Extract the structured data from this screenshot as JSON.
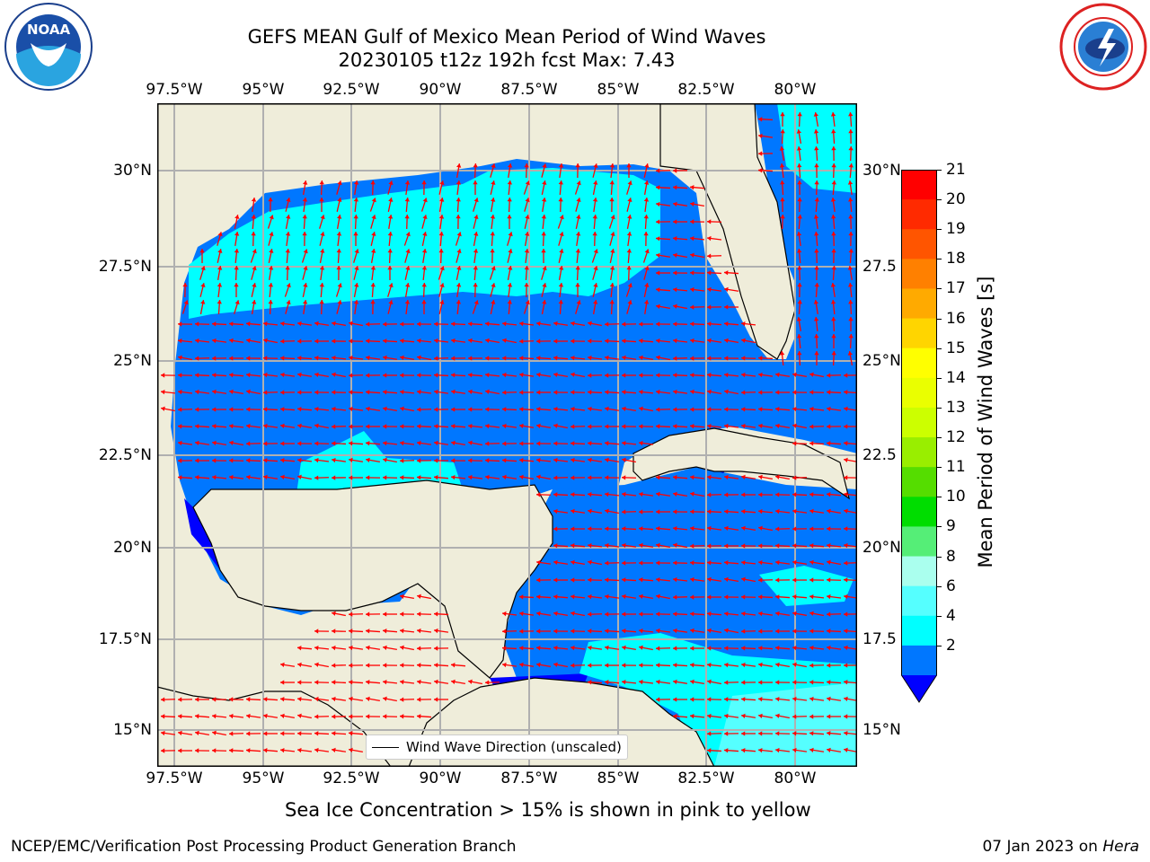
{
  "header": {
    "title_line1": "GEFS MEAN Gulf of Mexico Mean Period of Wind Waves",
    "title_line2": "20230105 t12z 192h fcst   Max: 7.43"
  },
  "logos": {
    "noaa_text": "NOAA",
    "noaa_ring_text": "NATIONAL OCEANIC AND ATMOSPHERIC ADMINISTRATION · U.S. DEPARTMENT OF COMMERCE",
    "nws_ring_text": "NATIONAL WEATHER SERVICE"
  },
  "map": {
    "lon_ticks": [
      "97.5°W",
      "95°W",
      "92.5°W",
      "90°W",
      "87.5°W",
      "85°W",
      "82.5°W",
      "80°W"
    ],
    "lat_ticks": [
      "30°N",
      "27.5°N",
      "25°N",
      "22.5°N",
      "20°N",
      "17.5°N",
      "15°N"
    ],
    "lat_ticks_right": [
      "30°N",
      "27.5",
      "25°N",
      "22.5",
      "20°N",
      "17.5",
      "15°N"
    ],
    "extent": {
      "lon": [
        -98,
        -78.3
      ],
      "lat": [
        14,
        31.6
      ]
    },
    "land_color": "#efedda",
    "grid": true,
    "arrow_color": "#ff0000",
    "legend_label": "Wind Wave Direction (unscaled)"
  },
  "colorbar": {
    "title": "Mean Period of Wind Waves [s]",
    "labels": [
      "21",
      "20",
      "19",
      "18",
      "17",
      "16",
      "15",
      "14",
      "13",
      "12",
      "11",
      "10",
      "9",
      "8",
      "6",
      "4",
      "2"
    ],
    "bands": [
      {
        "range": [
          20,
          21
        ],
        "color": "#ff0000"
      },
      {
        "range": [
          19,
          20
        ],
        "color": "#ff2a00"
      },
      {
        "range": [
          18,
          19
        ],
        "color": "#ff5500"
      },
      {
        "range": [
          17,
          18
        ],
        "color": "#ff8000"
      },
      {
        "range": [
          16,
          17
        ],
        "color": "#ffaa00"
      },
      {
        "range": [
          15,
          16
        ],
        "color": "#ffd500"
      },
      {
        "range": [
          14,
          15
        ],
        "color": "#ffff00"
      },
      {
        "range": [
          13,
          14
        ],
        "color": "#eaff00"
      },
      {
        "range": [
          12,
          13
        ],
        "color": "#ccff00"
      },
      {
        "range": [
          11,
          12
        ],
        "color": "#99ee00"
      },
      {
        "range": [
          10,
          11
        ],
        "color": "#55dd00"
      },
      {
        "range": [
          9,
          10
        ],
        "color": "#00dd00"
      },
      {
        "range": [
          8,
          9
        ],
        "color": "#55ee77"
      },
      {
        "range": [
          6,
          8
        ],
        "color": "#aaffee"
      },
      {
        "range": [
          4,
          6
        ],
        "color": "#55ffff"
      },
      {
        "range": [
          2,
          4
        ],
        "color": "#00ffff"
      },
      {
        "range": [
          0,
          2
        ],
        "color": "#0077ff"
      },
      {
        "range": [
          "under",
          0
        ],
        "color": "#0000ff"
      }
    ]
  },
  "note": "Sea Ice Concentration > 15% is shown in pink to yellow",
  "footer": {
    "left": "NCEP/EMC/Verification Post Processing Product Generation Branch",
    "right_date": "07 Jan 2023 on ",
    "right_machine": "Hera"
  }
}
